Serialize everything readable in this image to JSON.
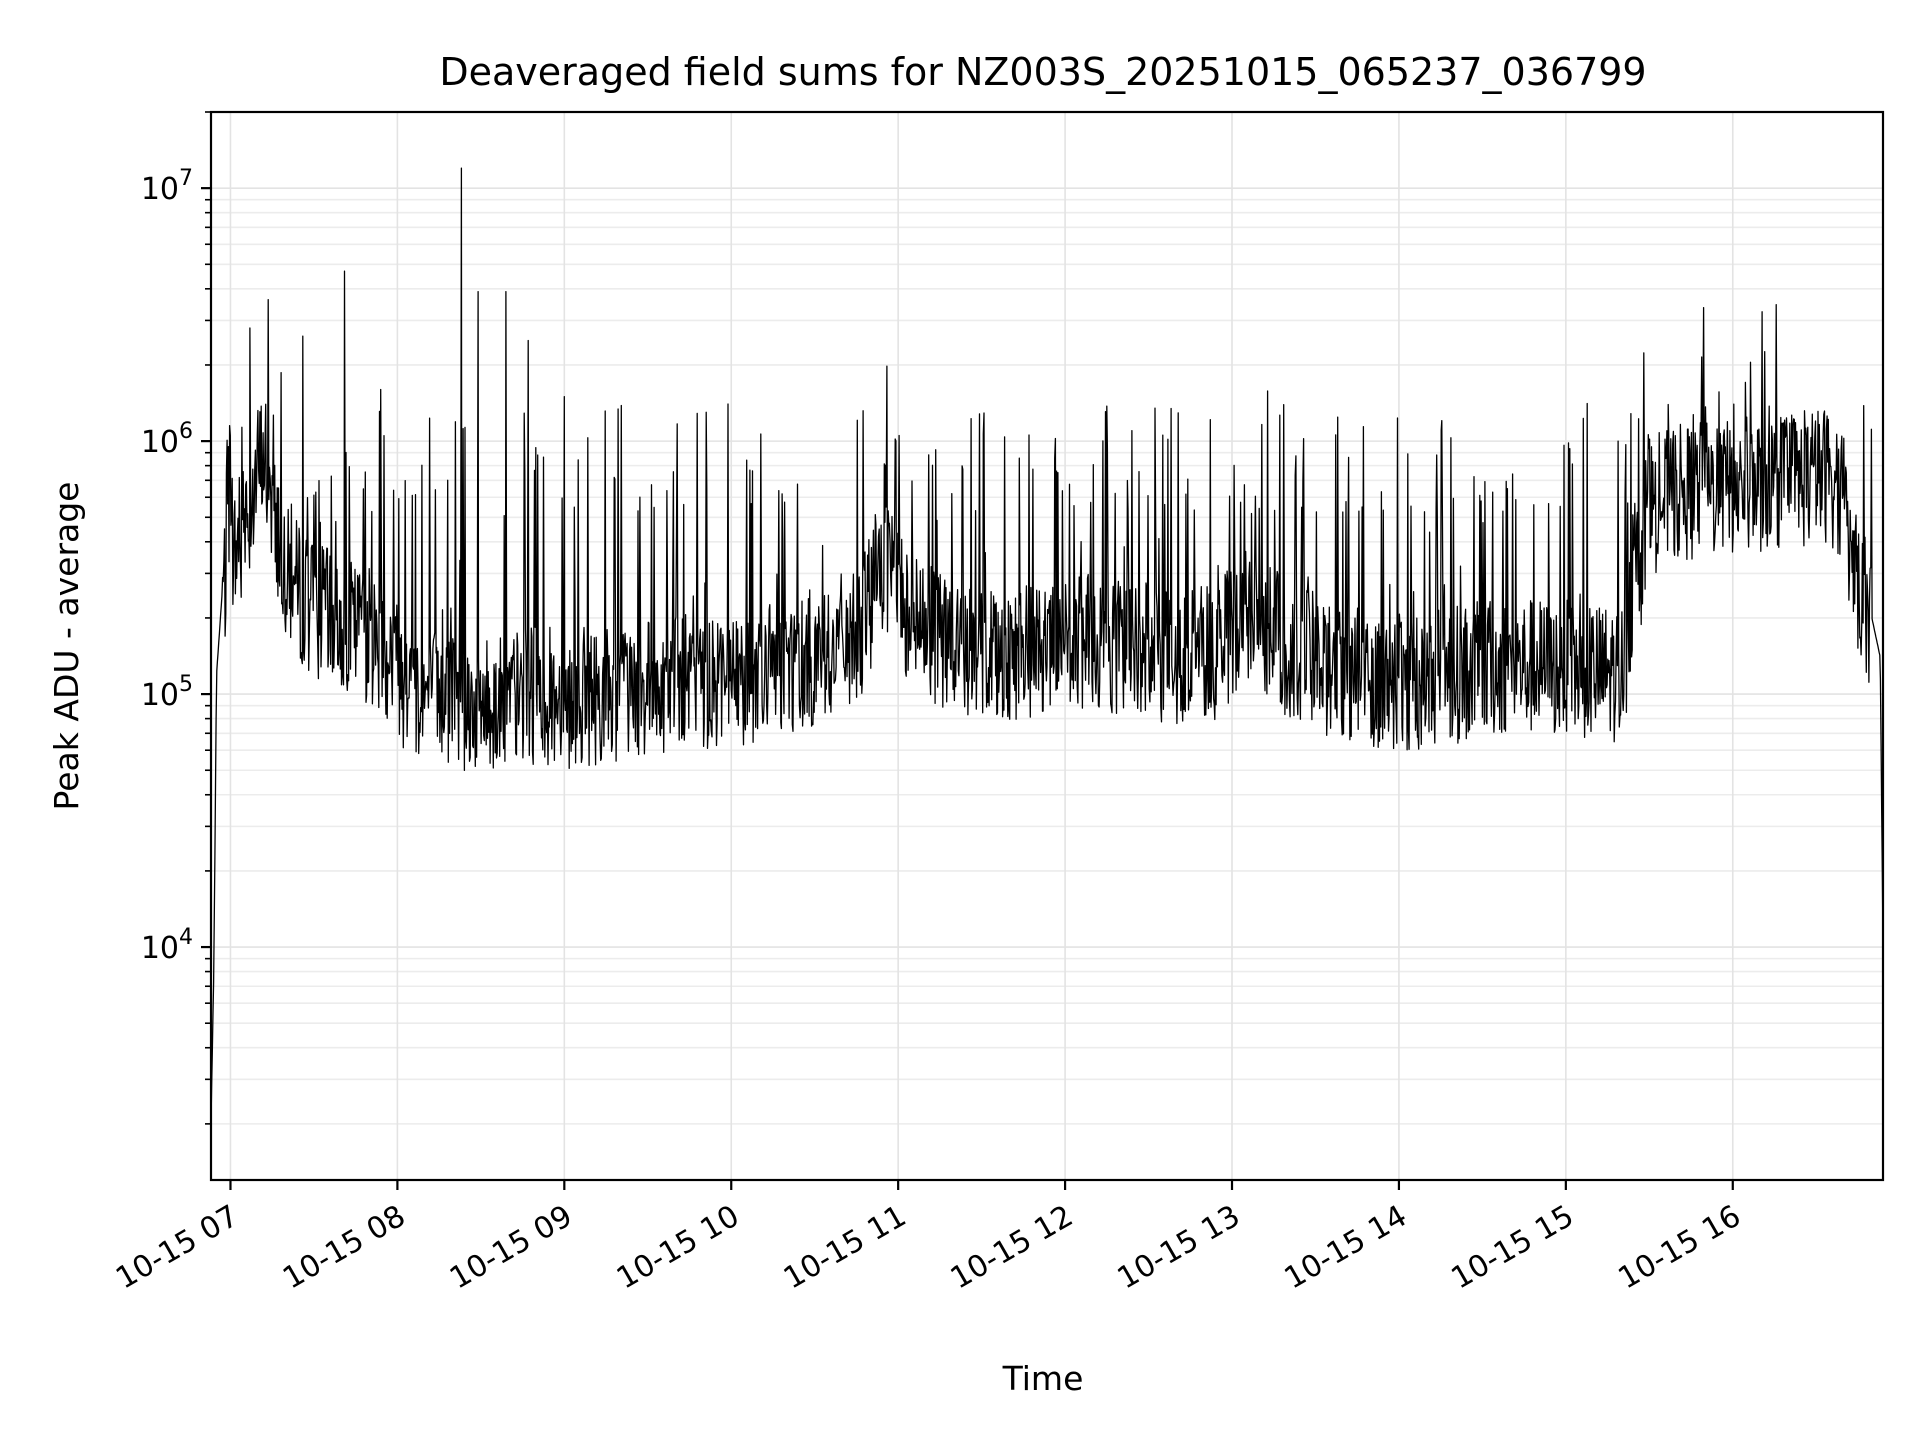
{
  "chart_data": {
    "type": "line",
    "title": "Deaveraged field sums for NZ003S_20251015_065237_036799",
    "xlabel": "Time",
    "ylabel": "Peak ADU - average",
    "x_scale": "time",
    "y_scale": "log",
    "xlim": [
      "2025-10-15 06:53",
      "2025-10-15 16:54"
    ],
    "ylim": [
      1200,
      20000000
    ],
    "grid": true,
    "legend": "none",
    "line_color": "#000000",
    "x_ticks": [
      "10-15 07",
      "10-15 08",
      "10-15 09",
      "10-15 10",
      "10-15 11",
      "10-15 12",
      "10-15 13",
      "10-15 14",
      "10-15 15",
      "10-15 16"
    ],
    "y_ticks": [
      {
        "value": 10000,
        "base": "10",
        "exp": "4"
      },
      {
        "value": 100000,
        "base": "10",
        "exp": "5"
      },
      {
        "value": 1000000,
        "base": "10",
        "exp": "6"
      },
      {
        "value": 10000000,
        "base": "10",
        "exp": "7"
      }
    ],
    "series": [
      {
        "x": [
          "2025-10-15 06:53",
          "2025-10-15 06:54",
          "2025-10-15 06:55",
          "2025-10-15 06:57",
          "2025-10-15 06:59",
          "2025-10-15 07:03",
          "2025-10-15 07:06",
          "2025-10-15 07:09",
          "2025-10-15 07:12",
          "2025-10-15 07:15",
          "2025-10-15 07:20",
          "2025-10-15 07:25",
          "2025-10-15 07:30",
          "2025-10-15 07:35",
          "2025-10-15 07:40",
          "2025-10-15 07:45",
          "2025-10-15 07:50",
          "2025-10-15 07:53",
          "2025-10-15 07:55",
          "2025-10-15 07:58",
          "2025-10-15 08:00",
          "2025-10-15 08:03",
          "2025-10-15 08:06",
          "2025-10-15 08:10",
          "2025-10-15 08:20",
          "2025-10-15 08:30",
          "2025-10-15 08:40",
          "2025-10-15 08:50",
          "2025-10-15 09:00",
          "2025-10-15 09:15",
          "2025-10-15 09:30",
          "2025-10-15 09:45",
          "2025-10-15 10:00",
          "2025-10-15 10:15",
          "2025-10-15 10:30",
          "2025-10-15 10:45",
          "2025-10-15 10:55",
          "2025-10-15 11:05",
          "2025-10-15 11:15",
          "2025-10-15 11:30",
          "2025-10-15 11:45",
          "2025-10-15 11:58",
          "2025-10-15 12:10",
          "2025-10-15 12:25",
          "2025-10-15 12:40",
          "2025-10-15 12:55",
          "2025-10-15 13:05",
          "2025-10-15 13:20",
          "2025-10-15 13:40",
          "2025-10-15 14:00",
          "2025-10-15 14:20",
          "2025-10-15 14:40",
          "2025-10-15 15:00",
          "2025-10-15 15:20",
          "2025-10-15 15:30",
          "2025-10-15 15:40",
          "2025-10-15 15:55",
          "2025-10-15 16:10",
          "2025-10-15 16:25",
          "2025-10-15 16:35",
          "2025-10-15 16:40",
          "2025-10-15 16:45",
          "2025-10-15 16:50",
          "2025-10-15 16:53",
          "2025-10-15 16:54"
        ],
        "y": [
          2000,
          8000,
          120000,
          250000,
          330000,
          380000,
          500000,
          700000,
          900000,
          600000,
          300000,
          250000,
          220000,
          200000,
          190000,
          180000,
          170000,
          160000,
          150000,
          150000,
          130000,
          110000,
          105000,
          100000,
          95000,
          90000,
          95000,
          100000,
          95000,
          100000,
          105000,
          110000,
          115000,
          125000,
          140000,
          170000,
          300000,
          200000,
          160000,
          150000,
          145000,
          150000,
          160000,
          150000,
          140000,
          150000,
          210000,
          150000,
          120000,
          110000,
          120000,
          130000,
          125000,
          120000,
          550000,
          620000,
          650000,
          680000,
          700000,
          750000,
          550000,
          250000,
          200000,
          140000,
          10000
        ]
      }
    ]
  }
}
